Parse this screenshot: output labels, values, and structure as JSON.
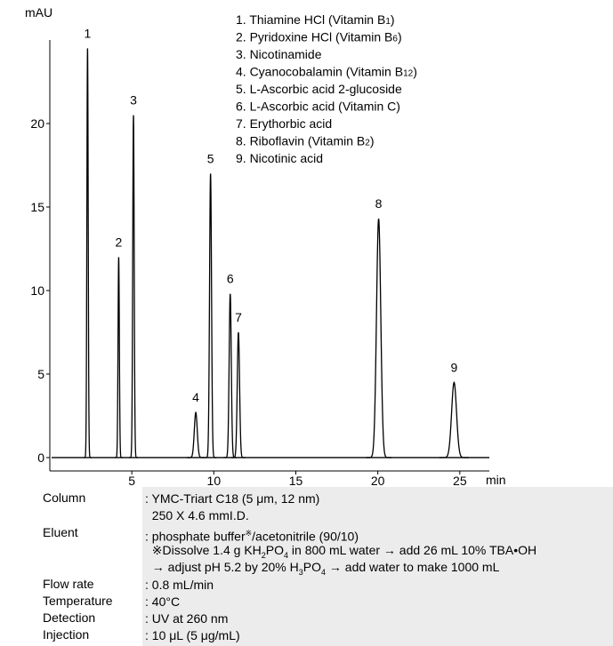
{
  "chart_data": {
    "type": "chromatogram",
    "y_label": "mAU",
    "x_label": "min",
    "xlim": [
      0,
      26.8
    ],
    "ylim": [
      -0.8,
      25
    ],
    "xticks": [
      5,
      10,
      15,
      20,
      25
    ],
    "yticks": [
      0,
      5,
      10,
      15,
      20
    ],
    "color": "#000000",
    "peaks": [
      {
        "label": "1",
        "time": 2.3,
        "height": 24.5,
        "width": 0.04
      },
      {
        "label": "2",
        "time": 4.2,
        "height": 12,
        "width": 0.04
      },
      {
        "label": "3",
        "time": 5.1,
        "height": 20.5,
        "width": 0.045
      },
      {
        "label": "4",
        "time": 8.9,
        "height": 2.7,
        "width": 0.09
      },
      {
        "label": "5",
        "time": 9.8,
        "height": 17,
        "width": 0.06
      },
      {
        "label": "6",
        "time": 11.0,
        "height": 9.8,
        "width": 0.065
      },
      {
        "label": "7",
        "time": 11.5,
        "height": 7.5,
        "width": 0.07
      },
      {
        "label": "8",
        "time": 20.05,
        "height": 14.3,
        "width": 0.13
      },
      {
        "label": "9",
        "time": 24.65,
        "height": 4.5,
        "width": 0.15
      }
    ],
    "legend": [
      [
        {
          "t": "1. Thiamine HCl (Vitamin B"
        },
        {
          "t": "1",
          "s": "sub"
        },
        {
          "t": ")"
        }
      ],
      [
        {
          "t": "2. Pyridoxine HCl (Vitamin B"
        },
        {
          "t": "6",
          "s": "sub"
        },
        {
          "t": ")"
        }
      ],
      [
        {
          "t": "3. Nicotinamide"
        }
      ],
      [
        {
          "t": "4. Cyanocobalamin (Vitamin B"
        },
        {
          "t": "12",
          "s": "sub"
        },
        {
          "t": ")"
        }
      ],
      [
        {
          "t": "5. L-Ascorbic acid 2-glucoside"
        }
      ],
      [
        {
          "t": "6. L-Ascorbic acid (Vitamin C)"
        }
      ],
      [
        {
          "t": "7. Erythorbic acid"
        }
      ],
      [
        {
          "t": "8. Riboflavin (Vitamin B"
        },
        {
          "t": "2",
          "s": "sub"
        },
        {
          "t": ")"
        }
      ],
      [
        {
          "t": "9. Nicotinic acid"
        }
      ]
    ]
  },
  "conditions": [
    {
      "label": "Column",
      "lines": [
        [
          {
            "t": ": YMC-Triart C18 (5 μm, 12 nm)"
          }
        ],
        [
          {
            "t": "  250 X 4.6 mmI.D."
          }
        ]
      ]
    },
    {
      "label": "Eluent",
      "lines": [
        [
          {
            "t": ": phosphate buffer"
          },
          {
            "t": "※",
            "s": "sup"
          },
          {
            "t": "/acetonitrile (90/10)"
          }
        ],
        [
          {
            "t": "  ※Dissolve 1.4 g KH"
          },
          {
            "t": "2",
            "s": "sub"
          },
          {
            "t": "PO"
          },
          {
            "t": "4",
            "s": "sub"
          },
          {
            "t": " in 800 mL water → add 26 mL 10% TBA•OH"
          }
        ],
        [
          {
            "t": "  → adjust pH 5.2 by 20% H"
          },
          {
            "t": "3",
            "s": "sub"
          },
          {
            "t": "PO"
          },
          {
            "t": "4",
            "s": "sub"
          },
          {
            "t": " → add water to make 1000 mL"
          }
        ]
      ]
    },
    {
      "label": "Flow rate",
      "lines": [
        [
          {
            "t": ": 0.8 mL/min"
          }
        ]
      ]
    },
    {
      "label": "Temperature",
      "lines": [
        [
          {
            "t": ": 40°C"
          }
        ]
      ]
    },
    {
      "label": "Detection",
      "lines": [
        [
          {
            "t": ": UV at 260 nm"
          }
        ]
      ]
    },
    {
      "label": "Injection",
      "lines": [
        [
          {
            "t": ": 10 μL (5 μg/mL)"
          }
        ]
      ]
    }
  ]
}
